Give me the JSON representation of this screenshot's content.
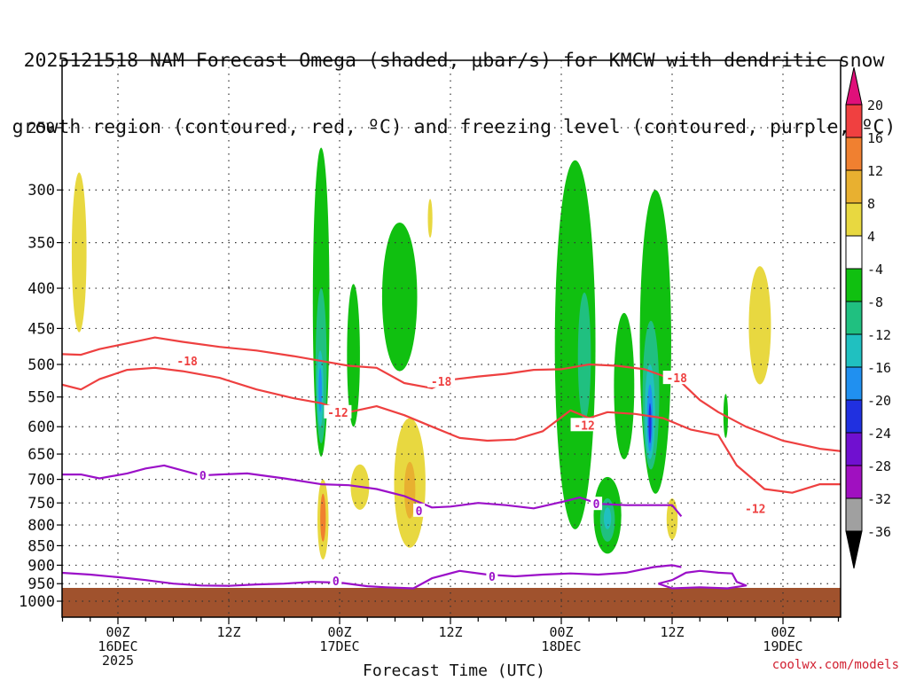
{
  "title_lines": [
    "2025121518 NAM Forecast Omega (shaded, μbar/s) for KMCW with dendritic snow",
    "growth region (contoured, red, ºC) and freezing level (contoured, purple, ºC)"
  ],
  "xlabel": "Forecast Time (UTC)",
  "credit": "coolwx.com/models",
  "chart_data": {
    "type": "time-height cross section",
    "y_axis": {
      "label": "",
      "scale": "log-pressure",
      "range_hpa": [
        1030,
        200
      ],
      "ticks": [
        250,
        300,
        350,
        400,
        450,
        500,
        550,
        600,
        650,
        700,
        750,
        800,
        850,
        900,
        950,
        1000
      ]
    },
    "x_axis": {
      "start": "2025-12-15T18Z",
      "end": "2025-12-19T06Z",
      "step_hours": 3,
      "ticks": [
        {
          "label": [
            "00Z",
            "16DEC",
            "2025"
          ],
          "hour": 6
        },
        {
          "label": [
            "12Z"
          ],
          "hour": 18
        },
        {
          "label": [
            "00Z",
            "17DEC"
          ],
          "hour": 30
        },
        {
          "label": [
            "12Z"
          ],
          "hour": 42
        },
        {
          "label": [
            "00Z",
            "18DEC"
          ],
          "hour": 54
        },
        {
          "label": [
            "12Z"
          ],
          "hour": 66
        },
        {
          "label": [
            "00Z",
            "19DEC"
          ],
          "hour": 78
        }
      ]
    },
    "grid": true,
    "colorbar": {
      "labels": [
        "20",
        "16",
        "12",
        "8",
        "4",
        "-4",
        "-8",
        "-12",
        "-16",
        "-20",
        "-24",
        "-28",
        "-32",
        "-36"
      ],
      "bins": [
        {
          "from": 16,
          "to": 20,
          "color": "#f04040"
        },
        {
          "from": 12,
          "to": 16,
          "color": "#f08030"
        },
        {
          "from": 8,
          "to": 12,
          "color": "#e8b030"
        },
        {
          "from": 4,
          "to": 8,
          "color": "#e8d840"
        },
        {
          "from": -4,
          "to": 4,
          "color": "#ffffff"
        },
        {
          "from": -8,
          "to": -4,
          "color": "#10c010"
        },
        {
          "from": -12,
          "to": -8,
          "color": "#20c080"
        },
        {
          "from": -16,
          "to": -12,
          "color": "#20c0c0"
        },
        {
          "from": -20,
          "to": -16,
          "color": "#2090f0"
        },
        {
          "from": -24,
          "to": -20,
          "color": "#2030e0"
        },
        {
          "from": -28,
          "to": -24,
          "color": "#7010d0"
        },
        {
          "from": -32,
          "to": -28,
          "color": "#a010c0"
        },
        {
          "from": -36,
          "to": -32,
          "color": "#a0a0a0"
        }
      ],
      "top_arrow_color": "#e0107a",
      "bottom_arrow_color": "#000000"
    },
    "ground_color": "#a0522d",
    "contours": {
      "dgz_color": "#ee4040",
      "freezing_color": "#9b10c8",
      "labels": [
        {
          "text": "-18",
          "hour": 13.5,
          "p": 495
        },
        {
          "text": "-18",
          "hour": 41,
          "p": 525
        },
        {
          "text": "-18",
          "hour": 66.5,
          "p": 520
        },
        {
          "text": "-12",
          "hour": 29.8,
          "p": 575
        },
        {
          "text": "-12",
          "hour": 56.5,
          "p": 597
        },
        {
          "text": "-12",
          "hour": 75,
          "p": 762
        },
        {
          "text": "0",
          "hour": 15.2,
          "p": 692
        },
        {
          "text": "0",
          "hour": 38.6,
          "p": 767
        },
        {
          "text": "0",
          "hour": 57.8,
          "p": 752
        },
        {
          "text": "0",
          "hour": 29.6,
          "p": 942
        },
        {
          "text": "0",
          "hour": 46.5,
          "p": 930
        }
      ],
      "dgz_upper_18": [
        [
          -0.2,
          485
        ],
        [
          2,
          486
        ],
        [
          4,
          478
        ],
        [
          7,
          470
        ],
        [
          10,
          462
        ],
        [
          13,
          468
        ],
        [
          17,
          475
        ],
        [
          21,
          480
        ],
        [
          25,
          488
        ],
        [
          28,
          495
        ],
        [
          31,
          502
        ],
        [
          34,
          505
        ],
        [
          37,
          528
        ],
        [
          40,
          536
        ],
        [
          42,
          523
        ],
        [
          45,
          518
        ],
        [
          48,
          514
        ],
        [
          51,
          508
        ],
        [
          54,
          507
        ],
        [
          57,
          500
        ],
        [
          60,
          502
        ],
        [
          63,
          507
        ],
        [
          65,
          517
        ],
        [
          67,
          527
        ],
        [
          69,
          555
        ],
        [
          71,
          575
        ],
        [
          74,
          600
        ],
        [
          78,
          625
        ],
        [
          82,
          640
        ],
        [
          84.5,
          645
        ]
      ],
      "dgz_lower_12": [
        [
          -0.2,
          530
        ],
        [
          2,
          538
        ],
        [
          4,
          522
        ],
        [
          7,
          508
        ],
        [
          10,
          505
        ],
        [
          13,
          510
        ],
        [
          17,
          520
        ],
        [
          21,
          538
        ],
        [
          25,
          552
        ],
        [
          28,
          560
        ],
        [
          31,
          575
        ],
        [
          34,
          565
        ],
        [
          37,
          580
        ],
        [
          40,
          600
        ],
        [
          43,
          620
        ],
        [
          46,
          625
        ],
        [
          49,
          623
        ],
        [
          52,
          608
        ],
        [
          55,
          572
        ],
        [
          57,
          585
        ],
        [
          59,
          575
        ],
        [
          62,
          578
        ],
        [
          65,
          585
        ],
        [
          68,
          605
        ],
        [
          71,
          615
        ],
        [
          73,
          672
        ],
        [
          76,
          720
        ],
        [
          79,
          728
        ],
        [
          82,
          710
        ],
        [
          84.5,
          710
        ]
      ],
      "freezing_upper": [
        [
          -0.2,
          690
        ],
        [
          2,
          690
        ],
        [
          4,
          698
        ],
        [
          7,
          688
        ],
        [
          9,
          678
        ],
        [
          11,
          672
        ],
        [
          13,
          682
        ],
        [
          15,
          692
        ],
        [
          17,
          690
        ],
        [
          20,
          688
        ],
        [
          24,
          698
        ],
        [
          28,
          710
        ],
        [
          31,
          712
        ],
        [
          34,
          720
        ],
        [
          37,
          735
        ],
        [
          40,
          760
        ],
        [
          42,
          758
        ],
        [
          45,
          750
        ],
        [
          48,
          755
        ],
        [
          51,
          762
        ],
        [
          54,
          748
        ],
        [
          56,
          738
        ],
        [
          58,
          752
        ],
        [
          61,
          755
        ],
        [
          64,
          755
        ],
        [
          66,
          755
        ],
        [
          67,
          780
        ]
      ],
      "freezing_lower": [
        [
          -0.2,
          920
        ],
        [
          3,
          925
        ],
        [
          6,
          932
        ],
        [
          9,
          940
        ],
        [
          12,
          950
        ],
        [
          15,
          955
        ],
        [
          18,
          956
        ],
        [
          21,
          952
        ],
        [
          24,
          950
        ],
        [
          27,
          945
        ],
        [
          30,
          947
        ],
        [
          33,
          957
        ],
        [
          35,
          960
        ],
        [
          38,
          963
        ],
        [
          40,
          935
        ],
        [
          43,
          915
        ],
        [
          46,
          925
        ],
        [
          49,
          930
        ],
        [
          52,
          925
        ],
        [
          55,
          922
        ],
        [
          58,
          925
        ],
        [
          61,
          920
        ],
        [
          64,
          905
        ],
        [
          66,
          900
        ],
        [
          67,
          905
        ]
      ],
      "freezing_loop_east": [
        [
          64.5,
          950
        ],
        [
          66,
          940
        ],
        [
          67.5,
          920
        ],
        [
          69,
          915
        ],
        [
          71,
          920
        ],
        [
          72.5,
          922
        ],
        [
          73,
          945
        ],
        [
          74,
          955
        ],
        [
          72,
          963
        ],
        [
          69,
          960
        ],
        [
          66,
          963
        ],
        [
          64.5,
          950
        ]
      ]
    },
    "omega_regions": [
      {
        "value": "4-8",
        "hour_c": 1.8,
        "p_top": 285,
        "p_bot": 455,
        "half_width_h": 0.8
      },
      {
        "value": "4-8",
        "hour_c": 39.8,
        "p_top": 308,
        "p_bot": 345,
        "half_width_h": 0.25
      },
      {
        "value": "4-8",
        "hour_c": 32.2,
        "p_top": 670,
        "p_bot": 765,
        "half_width_h": 1.0
      },
      {
        "value": "4-8",
        "hour_c": 37.6,
        "p_top": 585,
        "p_bot": 855,
        "half_width_h": 1.7
      },
      {
        "value": "8-12",
        "hour_c": 37.6,
        "p_top": 665,
        "p_bot": 785,
        "half_width_h": 0.6
      },
      {
        "value": "4-8",
        "hour_c": 28.2,
        "p_top": 700,
        "p_bot": 885,
        "half_width_h": 0.6
      },
      {
        "value": "12-16",
        "hour_c": 28.2,
        "p_top": 730,
        "p_bot": 840,
        "half_width_h": 0.3
      },
      {
        "value": "4-8",
        "hour_c": 75.5,
        "p_top": 375,
        "p_bot": 530,
        "half_width_h": 1.2
      },
      {
        "value": "4-8",
        "hour_c": 66.0,
        "p_top": 740,
        "p_bot": 835,
        "half_width_h": 0.6
      },
      {
        "value": "-4--8",
        "hour_c": 28.0,
        "p_top": 265,
        "p_bot": 655,
        "half_width_h": 0.9
      },
      {
        "value": "-8--12",
        "hour_c": 28.0,
        "p_top": 400,
        "p_bot": 630,
        "half_width_h": 0.6
      },
      {
        "value": "-12--16",
        "hour_c": 27.9,
        "p_top": 480,
        "p_bot": 600,
        "half_width_h": 0.35
      },
      {
        "value": "-16--20",
        "hour_c": 27.9,
        "p_top": 505,
        "p_bot": 575,
        "half_width_h": 0.18
      },
      {
        "value": "-4--8",
        "hour_c": 31.5,
        "p_top": 395,
        "p_bot": 600,
        "half_width_h": 0.7
      },
      {
        "value": "-4--8",
        "hour_c": 36.5,
        "p_top": 330,
        "p_bot": 510,
        "half_width_h": 1.9
      },
      {
        "value": "-4--8",
        "hour_c": 55.5,
        "p_top": 275,
        "p_bot": 810,
        "half_width_h": 2.2
      },
      {
        "value": "-8--12",
        "hour_c": 56.5,
        "p_top": 405,
        "p_bot": 590,
        "half_width_h": 0.7
      },
      {
        "value": "-4--8",
        "hour_c": 59.0,
        "p_top": 695,
        "p_bot": 870,
        "half_width_h": 1.5
      },
      {
        "value": "-8--12",
        "hour_c": 59.0,
        "p_top": 740,
        "p_bot": 840,
        "half_width_h": 0.8
      },
      {
        "value": "-12--16",
        "hour_c": 59.0,
        "p_top": 760,
        "p_bot": 810,
        "half_width_h": 0.4
      },
      {
        "value": "-4--8",
        "hour_c": 64.2,
        "p_top": 300,
        "p_bot": 730,
        "half_width_h": 1.7
      },
      {
        "value": "-4--8",
        "hour_c": 60.8,
        "p_top": 430,
        "p_bot": 660,
        "half_width_h": 1.1
      },
      {
        "value": "-8--12",
        "hour_c": 63.7,
        "p_top": 440,
        "p_bot": 680,
        "half_width_h": 0.9
      },
      {
        "value": "-12--16",
        "hour_c": 63.6,
        "p_top": 500,
        "p_bot": 660,
        "half_width_h": 0.55
      },
      {
        "value": "-16--20",
        "hour_c": 63.6,
        "p_top": 530,
        "p_bot": 645,
        "half_width_h": 0.3
      },
      {
        "value": "-20--24",
        "hour_c": 63.6,
        "p_top": 560,
        "p_bot": 630,
        "half_width_h": 0.15
      },
      {
        "value": "-4--8",
        "hour_c": 71.8,
        "p_top": 545,
        "p_bot": 620,
        "half_width_h": 0.25
      }
    ]
  }
}
